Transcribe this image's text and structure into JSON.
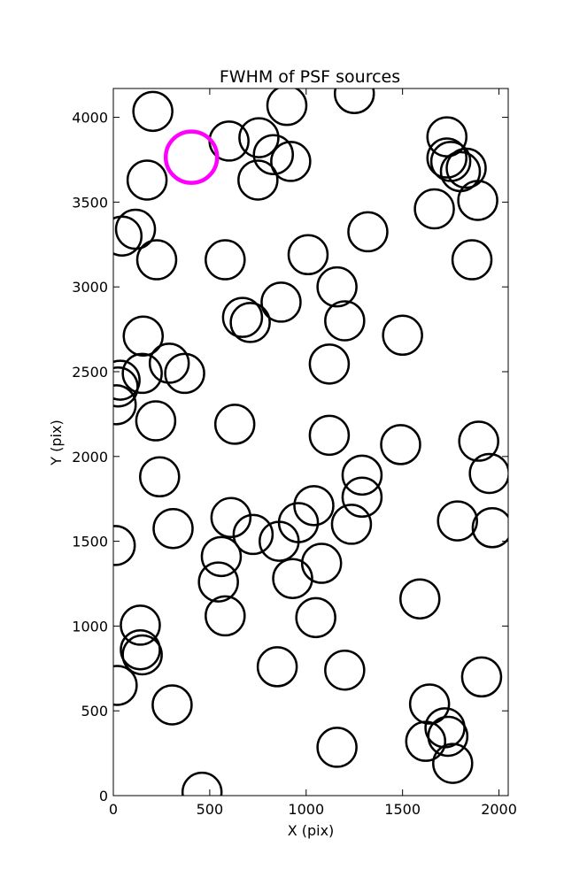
{
  "chart_data": {
    "type": "scatter",
    "title": "FWHM of PSF sources",
    "xlabel": "X (pix)",
    "ylabel": "Y (pix)",
    "xlim": [
      0,
      2048
    ],
    "ylim": [
      0,
      4170
    ],
    "xticks": [
      0,
      500,
      1000,
      1500,
      2000
    ],
    "yticks": [
      0,
      500,
      1000,
      1500,
      2000,
      2500,
      3000,
      3500,
      4000
    ],
    "grid": false,
    "marker": "open-circle",
    "colors": {
      "normal": "#000000",
      "highlight": "#ff00ff"
    },
    "highlight": {
      "x": 405,
      "y": 3765
    },
    "points": [
      [
        205,
        4035
      ],
      [
        600,
        3860
      ],
      [
        755,
        3880
      ],
      [
        830,
        3780
      ],
      [
        900,
        4070
      ],
      [
        920,
        3740
      ],
      [
        750,
        3630
      ],
      [
        175,
        3630
      ],
      [
        1250,
        4140
      ],
      [
        1730,
        3885
      ],
      [
        1730,
        3760
      ],
      [
        1750,
        3740
      ],
      [
        1800,
        3680
      ],
      [
        1830,
        3700
      ],
      [
        1890,
        3510
      ],
      [
        1665,
        3460
      ],
      [
        1320,
        3325
      ],
      [
        115,
        3340
      ],
      [
        45,
        3300
      ],
      [
        225,
        3160
      ],
      [
        580,
        3160
      ],
      [
        1010,
        3190
      ],
      [
        1160,
        3000
      ],
      [
        1860,
        3160
      ],
      [
        870,
        2910
      ],
      [
        670,
        2820
      ],
      [
        710,
        2790
      ],
      [
        1200,
        2800
      ],
      [
        155,
        2710
      ],
      [
        1500,
        2715
      ],
      [
        290,
        2550
      ],
      [
        370,
        2490
      ],
      [
        150,
        2490
      ],
      [
        35,
        2450
      ],
      [
        25,
        2410
      ],
      [
        15,
        2305
      ],
      [
        1120,
        2545
      ],
      [
        220,
        2210
      ],
      [
        630,
        2190
      ],
      [
        1120,
        2125
      ],
      [
        1490,
        2070
      ],
      [
        1895,
        2090
      ],
      [
        1950,
        1900
      ],
      [
        240,
        1880
      ],
      [
        1290,
        1890
      ],
      [
        1290,
        1760
      ],
      [
        1040,
        1710
      ],
      [
        960,
        1610
      ],
      [
        610,
        1640
      ],
      [
        1235,
        1600
      ],
      [
        1785,
        1620
      ],
      [
        1965,
        1580
      ],
      [
        310,
        1575
      ],
      [
        725,
        1540
      ],
      [
        860,
        1500
      ],
      [
        560,
        1410
      ],
      [
        1080,
        1370
      ],
      [
        930,
        1280
      ],
      [
        545,
        1260
      ],
      [
        10,
        1475
      ],
      [
        1590,
        1160
      ],
      [
        580,
        1060
      ],
      [
        1050,
        1050
      ],
      [
        140,
        1005
      ],
      [
        140,
        860
      ],
      [
        150,
        830
      ],
      [
        1200,
        740
      ],
      [
        850,
        760
      ],
      [
        1910,
        700
      ],
      [
        20,
        650
      ],
      [
        305,
        535
      ],
      [
        1640,
        540
      ],
      [
        1720,
        400
      ],
      [
        1735,
        350
      ],
      [
        1620,
        320
      ],
      [
        1160,
        285
      ],
      [
        1760,
        190
      ],
      [
        460,
        20
      ]
    ]
  }
}
